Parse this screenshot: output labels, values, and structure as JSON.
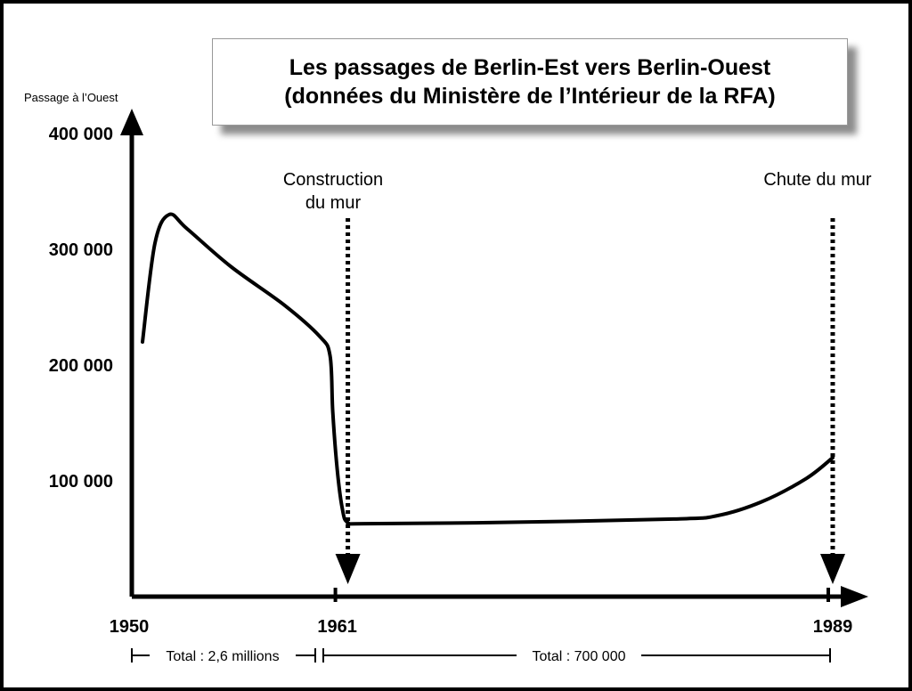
{
  "chart_data": {
    "type": "line",
    "title": "Les passages de Berlin-Est vers Berlin-Ouest",
    "subtitle": "(données du Ministère de l’Intérieur de la RFA)",
    "ylabel": "Passage à l’Ouest",
    "xlabel": "",
    "ylim": [
      0,
      400000
    ],
    "yticks": [
      {
        "value": 100000,
        "label": "100 000"
      },
      {
        "value": 200000,
        "label": "200 000"
      },
      {
        "value": 300000,
        "label": "300 000"
      },
      {
        "value": 400000,
        "label": "400 000"
      }
    ],
    "xticks": [
      {
        "value": 1950,
        "label": "1950"
      },
      {
        "value": 1961,
        "label": "1961"
      },
      {
        "value": 1989,
        "label": "1989"
      }
    ],
    "series": [
      {
        "points": [
          [
            1950,
            220000
          ],
          [
            1950.7,
            305000
          ],
          [
            1951.5,
            330000
          ],
          [
            1952.5,
            318000
          ],
          [
            1955,
            285000
          ],
          [
            1958,
            252000
          ],
          [
            1960,
            225000
          ],
          [
            1960.6,
            208000
          ],
          [
            1960.75,
            160000
          ],
          [
            1961,
            110000
          ],
          [
            1961.3,
            75000
          ],
          [
            1961.6,
            64000
          ],
          [
            1962.5,
            63000
          ],
          [
            1970,
            64000
          ],
          [
            1980,
            67000
          ],
          [
            1982.5,
            70000
          ],
          [
            1985,
            82000
          ],
          [
            1987.5,
            102000
          ],
          [
            1989,
            120000
          ]
        ]
      }
    ],
    "annotations": [
      {
        "lines": [
          "Construction",
          "du mur"
        ],
        "x": 1961
      },
      {
        "lines": [
          "Chute du mur"
        ],
        "x": 1989
      }
    ],
    "totals": [
      {
        "label": "Total : 2,6 millions",
        "from": 1950,
        "to": 1961
      },
      {
        "label": "Total : 700 000",
        "from": 1961,
        "to": 1989
      }
    ],
    "grid": false,
    "legend": "none"
  }
}
